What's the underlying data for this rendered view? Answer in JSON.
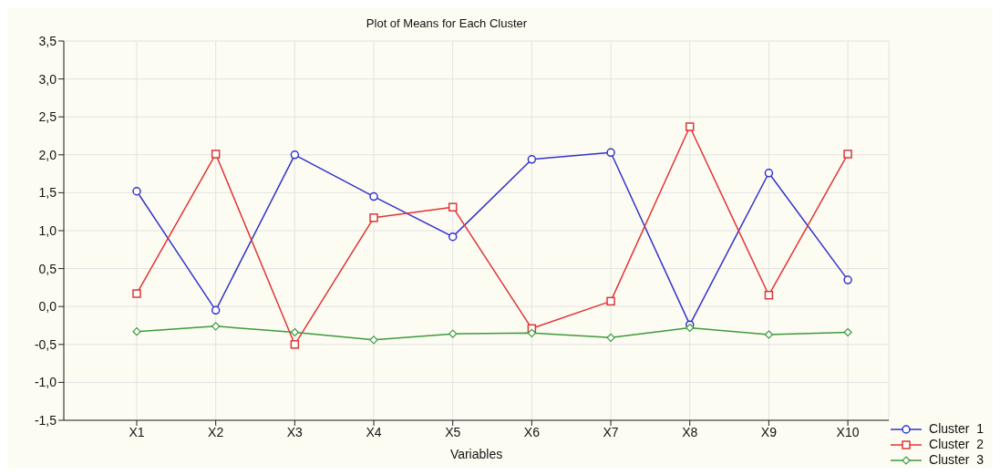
{
  "chart_data": {
    "type": "line",
    "title": "Plot of Means for Each Cluster",
    "xlabel": "Variables",
    "categories": [
      "X1",
      "X2",
      "X3",
      "X4",
      "X5",
      "X6",
      "X7",
      "X8",
      "X9",
      "X10"
    ],
    "series": [
      {
        "name": "Cluster  1",
        "color": "#3333cc",
        "marker": "circle",
        "values": [
          1.52,
          -0.05,
          2.0,
          1.45,
          0.92,
          1.94,
          2.03,
          -0.24,
          1.76,
          0.35
        ]
      },
      {
        "name": "Cluster  2",
        "color": "#e03535",
        "marker": "square",
        "values": [
          0.17,
          2.01,
          -0.5,
          1.17,
          1.31,
          -0.29,
          0.07,
          2.37,
          0.15,
          2.01
        ]
      },
      {
        "name": "Cluster  3",
        "color": "#3d9a3d",
        "marker": "diamond",
        "values": [
          -0.33,
          -0.26,
          -0.34,
          -0.44,
          -0.36,
          -0.35,
          -0.41,
          -0.28,
          -0.37,
          -0.34
        ]
      }
    ],
    "ylim": [
      -1.5,
      3.5
    ],
    "yticks": [
      {
        "value": -1.5,
        "label": "-1,5"
      },
      {
        "value": -1.0,
        "label": "-1,0"
      },
      {
        "value": -0.5,
        "label": "-0,5"
      },
      {
        "value": 0,
        "label": "0,0"
      },
      {
        "value": 0.5,
        "label": "0,5"
      },
      {
        "value": 1.0,
        "label": "1,0"
      },
      {
        "value": 1.5,
        "label": "1,5"
      },
      {
        "value": 2.0,
        "label": "2,0"
      },
      {
        "value": 2.5,
        "label": "2,5"
      },
      {
        "value": 3.0,
        "label": "3,0"
      },
      {
        "value": 3.5,
        "label": "3,5"
      }
    ],
    "grid": true,
    "legend": "bottom right",
    "line_style": "solid"
  }
}
